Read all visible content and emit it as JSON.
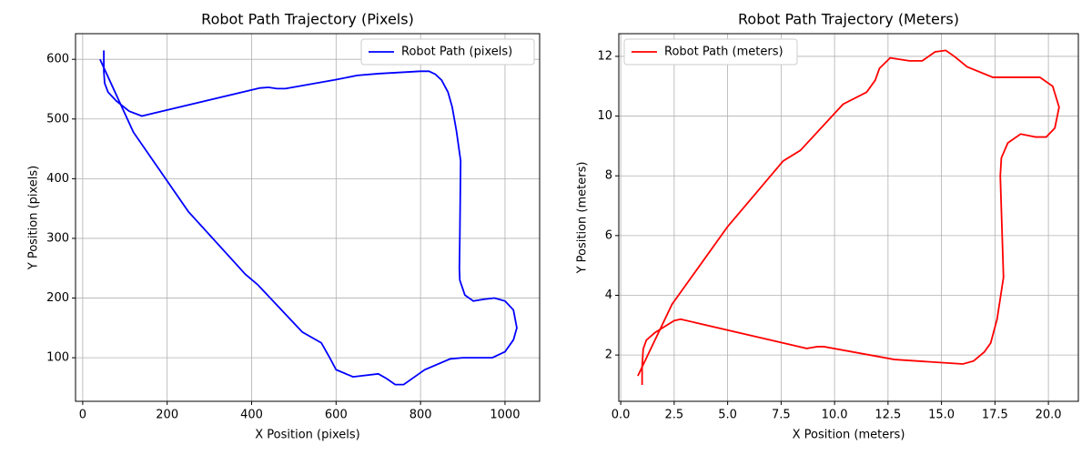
{
  "chart_data": [
    {
      "type": "line",
      "title": "Robot Path Trajectory (Pixels)",
      "xlabel": "X Position (pixels)",
      "ylabel": "Y Position (pixels)",
      "grid": true,
      "legend": "upper right",
      "xlim": [
        -17,
        1082
      ],
      "ylim": [
        27,
        643
      ],
      "xticks": [
        0,
        200,
        400,
        600,
        800,
        1000
      ],
      "yticks": [
        100,
        200,
        300,
        400,
        500,
        600
      ],
      "series": [
        {
          "name": "Robot Path (pixels)",
          "color": "#0000ff",
          "x": [
            41,
            120,
            250,
            385,
            415,
            520,
            565,
            585,
            600,
            640,
            700,
            720,
            740,
            760,
            790,
            810,
            870,
            900,
            970,
            1000,
            1020,
            1028,
            1020,
            1000,
            975,
            950,
            925,
            905,
            893,
            892,
            893,
            895,
            885,
            875,
            865,
            850,
            835,
            820,
            800,
            700,
            650,
            600,
            480,
            460,
            440,
            420,
            140,
            110,
            80,
            60,
            52,
            50,
            50
          ],
          "values": [
            600,
            478,
            345,
            240,
            222,
            143,
            125,
            100,
            80,
            68,
            73,
            65,
            55,
            55,
            70,
            80,
            98,
            100,
            100,
            110,
            130,
            150,
            180,
            195,
            200,
            198,
            195,
            205,
            230,
            250,
            300,
            430,
            480,
            520,
            545,
            565,
            575,
            580,
            580,
            576,
            573,
            566,
            551,
            551,
            553,
            552,
            505,
            513,
            530,
            545,
            560,
            580,
            615
          ]
        }
      ]
    },
    {
      "type": "line",
      "title": "Robot Path Trajectory (Meters)",
      "xlabel": "X Position (meters)",
      "ylabel": "Y Position (meters)",
      "grid": true,
      "legend": "upper left",
      "xlim": [
        -0.09,
        21.4
      ],
      "ylim": [
        0.45,
        12.76
      ],
      "xticks": [
        {
          "value": 0,
          "label": "0.0"
        },
        2.5,
        {
          "value": 5,
          "label": "5.0"
        },
        7.5,
        {
          "value": 10,
          "label": "10.0"
        },
        12.5,
        {
          "value": 15,
          "label": "15.0"
        },
        17.5,
        {
          "value": 20,
          "label": "20.0"
        }
      ],
      "yticks": [
        2,
        4,
        6,
        8,
        10,
        12
      ],
      "series": [
        {
          "name": "Robot Path (meters)",
          "color": "#ff0000",
          "x": [
            0.8,
            1.6,
            2.4,
            5,
            7.6,
            8.4,
            10.4,
            11.5,
            11.9,
            12.1,
            12.6,
            13.5,
            14.1,
            14.7,
            15.2,
            15.6,
            16.2,
            17.4,
            18,
            19.6,
            20.2,
            20.5,
            20.3,
            19.9,
            19.4,
            18.7,
            18.1,
            17.8,
            17.75,
            17.9,
            17.6,
            17.3,
            17,
            16.5,
            16,
            12.8,
            9.5,
            9.2,
            8.7,
            2.8,
            2.5,
            1.6,
            1.2,
            1.05,
            1,
            1
          ],
          "values": [
            1.3,
            2.5,
            3.7,
            6.3,
            8.5,
            8.85,
            10.4,
            10.8,
            11.2,
            11.6,
            11.95,
            11.85,
            11.85,
            12.15,
            12.2,
            12.0,
            11.65,
            11.3,
            11.3,
            11.3,
            11.0,
            10.3,
            9.6,
            9.3,
            9.3,
            9.4,
            9.1,
            8.6,
            8.0,
            4.6,
            3.2,
            2.4,
            2.1,
            1.8,
            1.7,
            1.85,
            2.28,
            2.28,
            2.22,
            3.2,
            3.15,
            2.75,
            2.5,
            2.2,
            1.6,
            1.0
          ]
        }
      ]
    }
  ]
}
